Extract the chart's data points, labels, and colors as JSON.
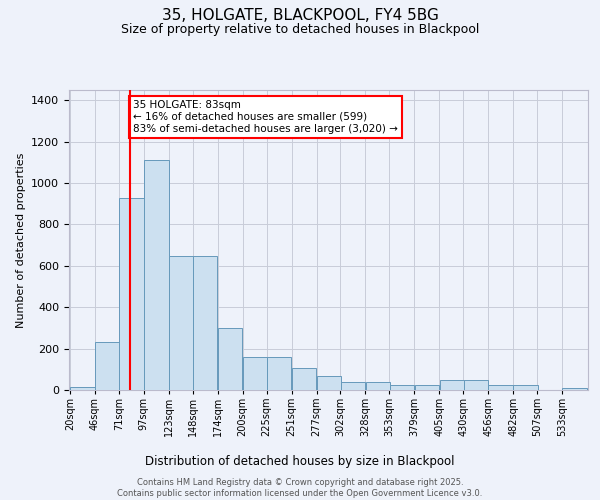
{
  "title1": "35, HOLGATE, BLACKPOOL, FY4 5BG",
  "title2": "Size of property relative to detached houses in Blackpool",
  "xlabel": "Distribution of detached houses by size in Blackpool",
  "ylabel": "Number of detached properties",
  "bar_color": "#cce0f0",
  "bar_edge_color": "#6699bb",
  "background_color": "#eef2fa",
  "grid_color": "#c8ccd8",
  "redline_x": 83,
  "annotation_text": "35 HOLGATE: 83sqm\n← 16% of detached houses are smaller (599)\n83% of semi-detached houses are larger (3,020) →",
  "footer1": "Contains HM Land Registry data © Crown copyright and database right 2025.",
  "footer2": "Contains public sector information licensed under the Open Government Licence v3.0.",
  "bin_starts": [
    20,
    46,
    71,
    97,
    123,
    148,
    174,
    200,
    225,
    251,
    277,
    302,
    328,
    353,
    379,
    405,
    430,
    456,
    482,
    507,
    533
  ],
  "values": [
    15,
    230,
    930,
    1110,
    650,
    650,
    300,
    160,
    160,
    105,
    70,
    38,
    38,
    22,
    22,
    50,
    50,
    22,
    22,
    0,
    10
  ],
  "ylim": [
    0,
    1450
  ],
  "yticks": [
    0,
    200,
    400,
    600,
    800,
    1000,
    1200,
    1400
  ],
  "bin_width": 26
}
